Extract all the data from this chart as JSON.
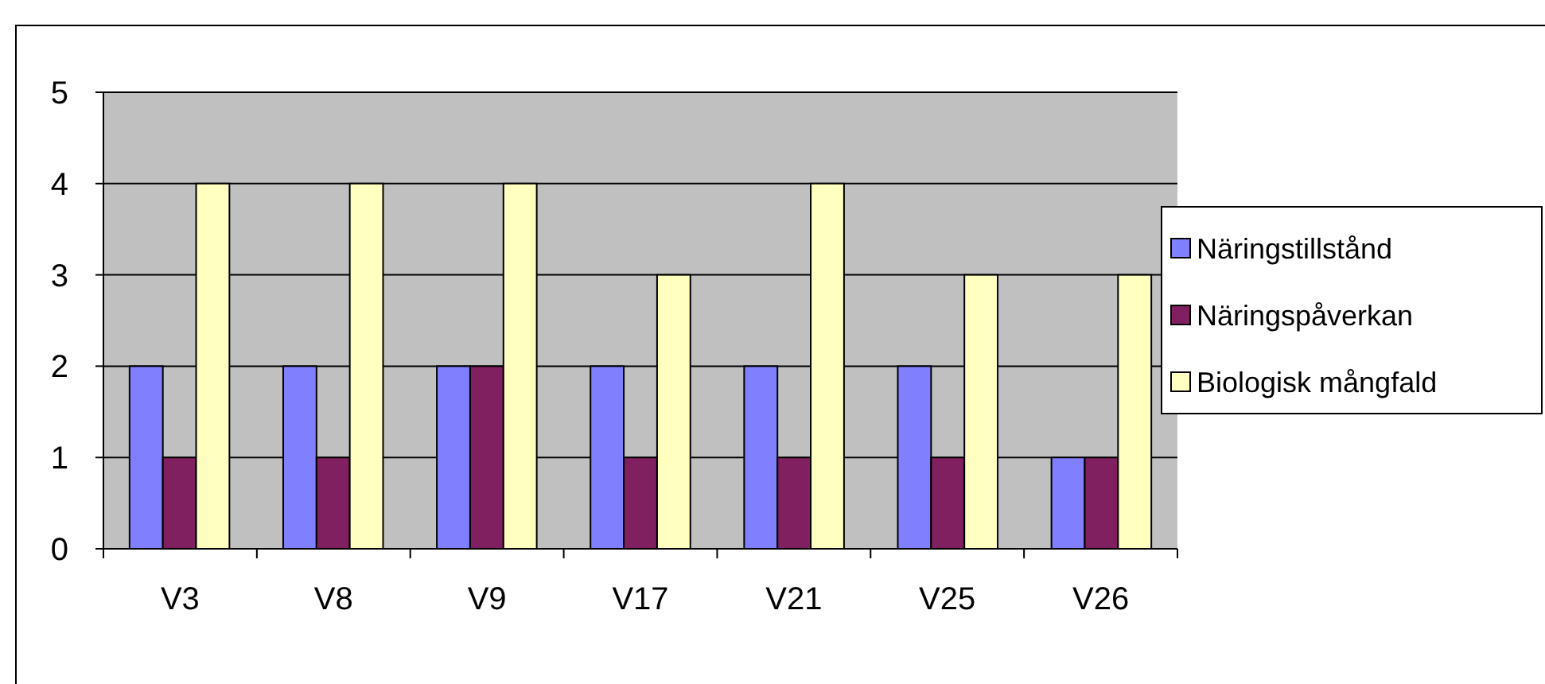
{
  "chart_data": {
    "type": "bar",
    "categories": [
      "V3",
      "V8",
      "V9",
      "V17",
      "V21",
      "V25",
      "V26"
    ],
    "series": [
      {
        "name": "Näringstillstånd",
        "color": "#8080ff",
        "values": [
          2,
          2,
          2,
          2,
          2,
          2,
          1
        ]
      },
      {
        "name": "Näringspåverkan",
        "color": "#802060",
        "values": [
          1,
          1,
          2,
          1,
          1,
          1,
          1
        ]
      },
      {
        "name": "Biologisk mångfald",
        "color": "#ffffc0",
        "values": [
          4,
          4,
          4,
          3,
          4,
          3,
          3
        ]
      }
    ],
    "ylim": [
      0,
      5
    ],
    "yticks": [
      0,
      1,
      2,
      3,
      4,
      5
    ],
    "grid": "y",
    "legend": "right"
  }
}
